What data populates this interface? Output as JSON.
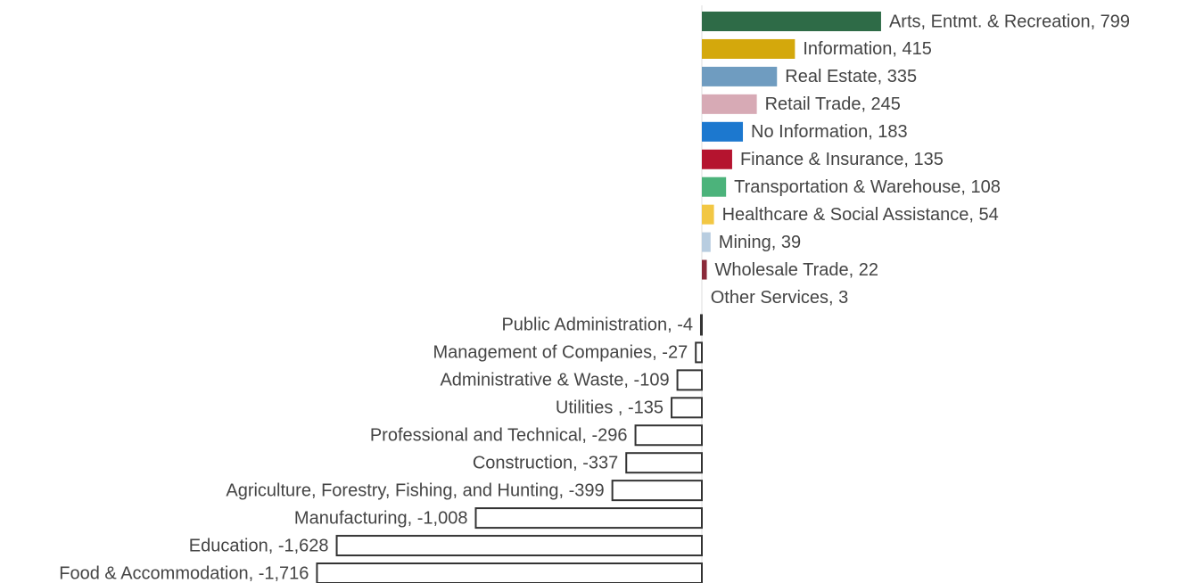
{
  "chart_data": {
    "type": "bar",
    "orientation": "horizontal",
    "values": [
      799,
      415,
      335,
      245,
      183,
      135,
      108,
      54,
      39,
      22,
      3,
      -4,
      -27,
      -109,
      -135,
      -296,
      -337,
      -399,
      -1008,
      -1628,
      -1716
    ],
    "value_labels": [
      "Arts, Entmt. & Recreation, 799",
      "Information, 415",
      "Real Estate, 335",
      "Retail Trade, 245",
      "No Information, 183",
      "Finance & Insurance, 135",
      "Transportation & Warehouse, 108",
      "Healthcare & Social Assistance, 54",
      "Mining, 39",
      "Wholesale Trade, 22",
      "Other Services, 3",
      "Public Administration, -4",
      "Management of Companies, -27",
      "Administrative & Waste, -109",
      "Utilities , -135",
      "Professional and Technical, -296",
      "Construction, -337",
      "Agriculture, Forestry, Fishing, and Hunting, -399",
      "Manufacturing, -1,008",
      "Education, -1,628",
      "Food & Accommodation, -1,716"
    ],
    "colors": [
      "#2e6b47",
      "#d4a80c",
      "#6f9cc0",
      "#d7aab5",
      "#1c78cf",
      "#b5142f",
      "#4cb37b",
      "#f2c744",
      "#b8cde0",
      "#8b2a3a",
      "#e8e8e8",
      "#ffffff",
      "#ffffff",
      "#ffffff",
      "#ffffff",
      "#ffffff",
      "#ffffff",
      "#ffffff",
      "#ffffff",
      "#ffffff",
      "#ffffff"
    ],
    "negative_outline": "#333333"
  }
}
